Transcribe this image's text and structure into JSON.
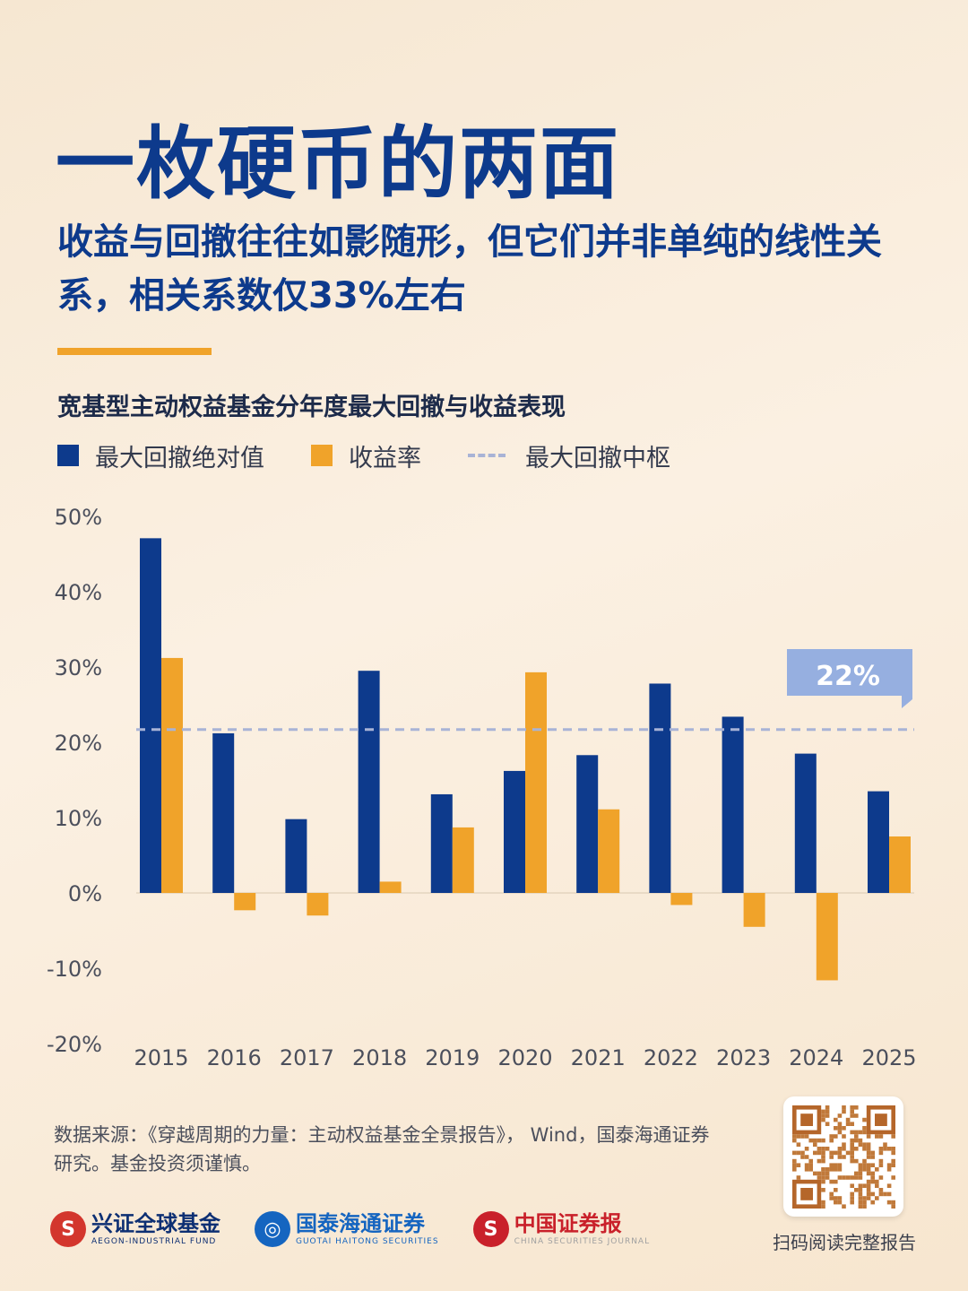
{
  "header": {
    "title": "一枚硬币的两面",
    "subtitle": "收益与回撤往往如影随形，但它们并非单纯的线性关系，相关系数仅33%左右"
  },
  "colors": {
    "drawdown": "#0d3a8c",
    "return": "#f0a32a",
    "median_line": "#a8b3d6",
    "callout_bg": "#96afe0"
  },
  "chart_data": {
    "type": "bar",
    "title": "宽基型主动权益基金分年度最大回撤与收益表现",
    "categories": [
      "2015",
      "2016",
      "2017",
      "2018",
      "2019",
      "2020",
      "2021",
      "2022",
      "2023",
      "2024",
      "2025"
    ],
    "series": [
      {
        "name": "最大回撤绝对值",
        "values": [
          47.1,
          21.2,
          9.8,
          29.5,
          13.1,
          16.2,
          18.3,
          27.8,
          23.4,
          18.5,
          13.5
        ]
      },
      {
        "name": "收益率",
        "values": [
          31.2,
          -2.3,
          -3.0,
          1.5,
          8.7,
          29.3,
          11.1,
          -1.6,
          -4.5,
          -11.6,
          7.5
        ]
      }
    ],
    "reference_line": {
      "name": "最大回撤中枢",
      "value": 21.7,
      "label": "22%"
    },
    "yticks": [
      "50%",
      "40%",
      "30%",
      "20%",
      "10%",
      "0%",
      "-10%",
      "-20%"
    ],
    "ylim": [
      -20,
      50
    ],
    "grid": false,
    "legend_position": "top-left"
  },
  "footer": {
    "source": "数据来源：《穿越周期的力量：主动权益基金全景报告》， Wind，国泰海通证券研究。基金投资须谨慎。",
    "qr_caption": "扫码阅读完整报告",
    "logos": [
      {
        "name": "兴证全球基金",
        "sub": "AEGON-INDUSTRIAL FUND",
        "mark": "S",
        "color": "#0d2f73",
        "mark_color": "#d3362d"
      },
      {
        "name": "国泰海通证券",
        "sub": "GUOTAI HAITONG SECURITIES",
        "mark": "◎",
        "color": "#1565c0",
        "mark_color": "#1565c0"
      },
      {
        "name": "中国证券报",
        "sub": "CHINA SECURITIES JOURNAL",
        "mark": "S",
        "color": "#c9202a",
        "mark_color": "#c9202a"
      }
    ]
  }
}
